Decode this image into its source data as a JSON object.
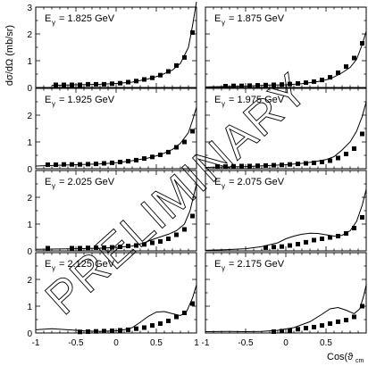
{
  "figure": {
    "y_axis_label": "dσ/dΩ (mb/sr)",
    "x_axis_label": "Cos(ϑ",
    "x_axis_label_sub": "cm",
    "watermark": "PRELIMINARY",
    "x_ticks_left": [
      "-1",
      "-0.5",
      "0",
      "0.5",
      "1"
    ],
    "x_ticks_right": [
      "-1",
      "-0.5",
      "0",
      "0.5"
    ]
  },
  "chart_data": {
    "type": "scatter",
    "layout": "4x2 grid",
    "xlim": [
      -1,
      1
    ],
    "ylim": [
      0,
      3
    ],
    "y_ticks": [
      0,
      1,
      2,
      3
    ],
    "panels": [
      {
        "label": "E",
        "label_sub": "γ",
        "label_value": "= 1.825 GeV",
        "points": [
          [
            -0.75,
            0.1
          ],
          [
            -0.65,
            0.1
          ],
          [
            -0.55,
            0.1
          ],
          [
            -0.45,
            0.1
          ],
          [
            -0.35,
            0.12
          ],
          [
            -0.25,
            0.12
          ],
          [
            -0.15,
            0.12
          ],
          [
            -0.05,
            0.14
          ],
          [
            0.05,
            0.16
          ],
          [
            0.15,
            0.2
          ],
          [
            0.25,
            0.24
          ],
          [
            0.35,
            0.3
          ],
          [
            0.45,
            0.36
          ],
          [
            0.55,
            0.46
          ],
          [
            0.65,
            0.6
          ],
          [
            0.75,
            0.82
          ],
          [
            0.85,
            1.12
          ],
          [
            0.95,
            2.05
          ]
        ],
        "curve": [
          [
            -0.8,
            0.08
          ],
          [
            -0.5,
            0.1
          ],
          [
            -0.2,
            0.12
          ],
          [
            0.0,
            0.15
          ],
          [
            0.2,
            0.2
          ],
          [
            0.4,
            0.32
          ],
          [
            0.55,
            0.45
          ],
          [
            0.7,
            0.65
          ],
          [
            0.8,
            0.9
          ],
          [
            0.9,
            1.5
          ],
          [
            0.95,
            2.3
          ],
          [
            1.0,
            3.2
          ]
        ]
      },
      {
        "label": "E",
        "label_sub": "γ",
        "label_value": "= 1.875 GeV",
        "points": [
          [
            -0.75,
            0.05
          ],
          [
            -0.65,
            0.06
          ],
          [
            -0.55,
            0.06
          ],
          [
            -0.45,
            0.07
          ],
          [
            -0.35,
            0.08
          ],
          [
            -0.25,
            0.09
          ],
          [
            -0.15,
            0.1
          ],
          [
            -0.05,
            0.11
          ],
          [
            0.05,
            0.13
          ],
          [
            0.15,
            0.15
          ],
          [
            0.25,
            0.18
          ],
          [
            0.35,
            0.22
          ],
          [
            0.45,
            0.28
          ],
          [
            0.55,
            0.38
          ],
          [
            0.65,
            0.55
          ],
          [
            0.75,
            0.78
          ],
          [
            0.85,
            1.1
          ],
          [
            0.95,
            1.65
          ]
        ],
        "curve": [
          [
            -1.0,
            0.02
          ],
          [
            -0.5,
            0.05
          ],
          [
            -0.2,
            0.09
          ],
          [
            0.0,
            0.1
          ],
          [
            0.2,
            0.14
          ],
          [
            0.4,
            0.22
          ],
          [
            0.55,
            0.32
          ],
          [
            0.7,
            0.55
          ],
          [
            0.8,
            0.75
          ],
          [
            0.88,
            1.05
          ],
          [
            0.95,
            1.6
          ],
          [
            1.0,
            2.1
          ]
        ]
      },
      {
        "label": "E",
        "label_sub": "γ",
        "label_value": "= 1.925 GeV",
        "points": [
          [
            -0.85,
            0.15
          ],
          [
            -0.75,
            0.15
          ],
          [
            -0.65,
            0.16
          ],
          [
            -0.55,
            0.16
          ],
          [
            -0.45,
            0.16
          ],
          [
            -0.35,
            0.17
          ],
          [
            -0.25,
            0.18
          ],
          [
            -0.15,
            0.2
          ],
          [
            -0.05,
            0.22
          ],
          [
            0.05,
            0.25
          ],
          [
            0.15,
            0.28
          ],
          [
            0.25,
            0.32
          ],
          [
            0.35,
            0.38
          ],
          [
            0.45,
            0.44
          ],
          [
            0.55,
            0.52
          ],
          [
            0.65,
            0.62
          ],
          [
            0.75,
            0.8
          ],
          [
            0.85,
            1.0
          ],
          [
            0.95,
            1.4
          ]
        ],
        "curve": [
          [
            -1.0,
            0.1
          ],
          [
            -0.8,
            0.12
          ],
          [
            -0.5,
            0.15
          ],
          [
            -0.2,
            0.18
          ],
          [
            0.0,
            0.22
          ],
          [
            0.2,
            0.3
          ],
          [
            0.4,
            0.4
          ],
          [
            0.55,
            0.52
          ],
          [
            0.7,
            0.72
          ],
          [
            0.8,
            0.95
          ],
          [
            0.9,
            1.35
          ],
          [
            0.95,
            1.8
          ],
          [
            1.0,
            2.3
          ]
        ]
      },
      {
        "label": "E",
        "label_sub": "γ",
        "label_value": "= 1.975 GeV",
        "points": [
          [
            -0.85,
            0.08
          ],
          [
            -0.75,
            0.08
          ],
          [
            -0.65,
            0.09
          ],
          [
            -0.55,
            0.1
          ],
          [
            -0.45,
            0.1
          ],
          [
            -0.35,
            0.11
          ],
          [
            -0.25,
            0.12
          ],
          [
            -0.15,
            0.13
          ],
          [
            -0.05,
            0.14
          ],
          [
            0.05,
            0.16
          ],
          [
            0.15,
            0.18
          ],
          [
            0.25,
            0.2
          ],
          [
            0.35,
            0.22
          ],
          [
            0.45,
            0.25
          ],
          [
            0.55,
            0.3
          ],
          [
            0.65,
            0.4
          ],
          [
            0.75,
            0.55
          ],
          [
            0.85,
            0.75
          ],
          [
            0.95,
            1.3
          ]
        ],
        "curve": [
          [
            -1.0,
            0.05
          ],
          [
            -0.5,
            0.08
          ],
          [
            -0.2,
            0.12
          ],
          [
            0.0,
            0.15
          ],
          [
            0.2,
            0.2
          ],
          [
            0.35,
            0.26
          ],
          [
            0.5,
            0.34
          ],
          [
            0.6,
            0.45
          ],
          [
            0.7,
            0.7
          ],
          [
            0.8,
            1.0
          ],
          [
            0.88,
            1.4
          ],
          [
            0.95,
            1.95
          ],
          [
            1.0,
            2.5
          ]
        ]
      },
      {
        "label": "E",
        "label_sub": "γ",
        "label_value": "= 2.025 GeV",
        "points": [
          [
            -0.85,
            0.1
          ],
          [
            -0.55,
            0.1
          ],
          [
            -0.45,
            0.1
          ],
          [
            -0.35,
            0.11
          ],
          [
            -0.25,
            0.12
          ],
          [
            -0.15,
            0.12
          ],
          [
            -0.05,
            0.13
          ],
          [
            0.05,
            0.15
          ],
          [
            0.15,
            0.18
          ],
          [
            0.25,
            0.2
          ],
          [
            0.35,
            0.24
          ],
          [
            0.45,
            0.3
          ],
          [
            0.55,
            0.35
          ],
          [
            0.65,
            0.45
          ],
          [
            0.75,
            0.6
          ],
          [
            0.85,
            0.8
          ],
          [
            0.95,
            1.3
          ]
        ],
        "curve": [
          [
            -1.0,
            0.06
          ],
          [
            -0.5,
            0.08
          ],
          [
            -0.2,
            0.1
          ],
          [
            0.0,
            0.13
          ],
          [
            0.2,
            0.18
          ],
          [
            0.35,
            0.3
          ],
          [
            0.45,
            0.42
          ],
          [
            0.55,
            0.52
          ],
          [
            0.65,
            0.62
          ],
          [
            0.75,
            0.75
          ],
          [
            0.85,
            1.0
          ],
          [
            0.92,
            1.5
          ],
          [
            1.0,
            2.5
          ]
        ]
      },
      {
        "label": "E",
        "label_sub": "γ",
        "label_value": "= 2.075 GeV",
        "points": [
          [
            -0.25,
            0.12
          ],
          [
            -0.15,
            0.14
          ],
          [
            -0.05,
            0.16
          ],
          [
            0.05,
            0.2
          ],
          [
            0.15,
            0.25
          ],
          [
            0.25,
            0.32
          ],
          [
            0.35,
            0.4
          ],
          [
            0.45,
            0.45
          ],
          [
            0.55,
            0.5
          ],
          [
            0.65,
            0.55
          ],
          [
            0.75,
            0.65
          ],
          [
            0.85,
            0.85
          ],
          [
            0.95,
            1.25
          ]
        ],
        "curve": [
          [
            -1.0,
            0.02
          ],
          [
            -0.7,
            0.05
          ],
          [
            -0.5,
            0.08
          ],
          [
            -0.3,
            0.16
          ],
          [
            -0.1,
            0.3
          ],
          [
            0.0,
            0.45
          ],
          [
            0.1,
            0.55
          ],
          [
            0.2,
            0.62
          ],
          [
            0.3,
            0.66
          ],
          [
            0.4,
            0.65
          ],
          [
            0.5,
            0.6
          ],
          [
            0.6,
            0.55
          ],
          [
            0.7,
            0.58
          ],
          [
            0.8,
            0.75
          ],
          [
            0.88,
            1.1
          ],
          [
            0.95,
            1.7
          ],
          [
            1.0,
            2.3
          ]
        ]
      },
      {
        "label": "E",
        "label_sub": "γ",
        "label_value": "= 2.125 GeV",
        "points": [
          [
            -0.45,
            0.04
          ],
          [
            -0.35,
            0.05
          ],
          [
            -0.25,
            0.06
          ],
          [
            -0.15,
            0.07
          ],
          [
            -0.05,
            0.08
          ],
          [
            0.05,
            0.1
          ],
          [
            0.15,
            0.12
          ],
          [
            0.25,
            0.16
          ],
          [
            0.35,
            0.2
          ],
          [
            0.45,
            0.28
          ],
          [
            0.55,
            0.35
          ],
          [
            0.65,
            0.45
          ],
          [
            0.75,
            0.6
          ],
          [
            0.85,
            0.75
          ],
          [
            0.95,
            1.1
          ]
        ],
        "curve": [
          [
            -1.0,
            0.12
          ],
          [
            -0.8,
            0.16
          ],
          [
            -0.6,
            0.12
          ],
          [
            -0.4,
            0.08
          ],
          [
            -0.2,
            0.06
          ],
          [
            0.0,
            0.08
          ],
          [
            0.1,
            0.12
          ],
          [
            0.2,
            0.2
          ],
          [
            0.3,
            0.4
          ],
          [
            0.4,
            0.62
          ],
          [
            0.5,
            0.78
          ],
          [
            0.6,
            0.8
          ],
          [
            0.7,
            0.72
          ],
          [
            0.8,
            0.65
          ],
          [
            0.88,
            0.82
          ],
          [
            0.95,
            1.3
          ],
          [
            1.0,
            1.8
          ]
        ]
      },
      {
        "label": "E",
        "label_sub": "γ",
        "label_value": "= 2.175 GeV",
        "points": [
          [
            -0.15,
            0.05
          ],
          [
            -0.05,
            0.07
          ],
          [
            0.05,
            0.1
          ],
          [
            0.15,
            0.14
          ],
          [
            0.25,
            0.18
          ],
          [
            0.35,
            0.22
          ],
          [
            0.45,
            0.28
          ],
          [
            0.55,
            0.35
          ],
          [
            0.65,
            0.42
          ],
          [
            0.75,
            0.48
          ],
          [
            0.85,
            0.6
          ],
          [
            0.95,
            1.0
          ]
        ],
        "curve": [
          [
            -1.0,
            0.05
          ],
          [
            -0.7,
            0.06
          ],
          [
            -0.5,
            0.05
          ],
          [
            -0.3,
            0.06
          ],
          [
            -0.1,
            0.1
          ],
          [
            0.1,
            0.2
          ],
          [
            0.3,
            0.42
          ],
          [
            0.45,
            0.7
          ],
          [
            0.55,
            0.9
          ],
          [
            0.65,
            0.95
          ],
          [
            0.75,
            0.85
          ],
          [
            0.85,
            0.72
          ],
          [
            0.92,
            0.9
          ],
          [
            0.97,
            1.4
          ],
          [
            1.0,
            1.8
          ]
        ]
      }
    ]
  }
}
